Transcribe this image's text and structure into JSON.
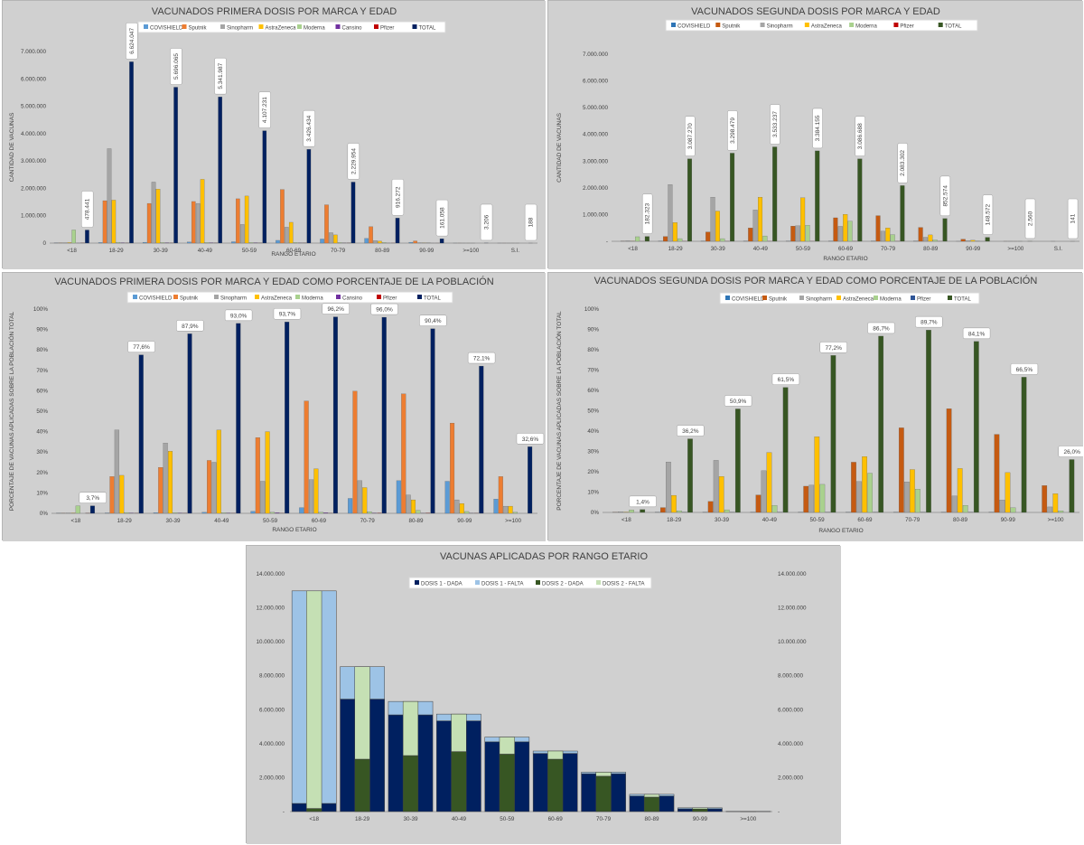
{
  "chart_data": [
    {
      "id": "c1",
      "type": "bar",
      "title": "VACUNADOS PRIMERA DOSIS POR MARCA Y EDAD",
      "xlabel": "RANGO ETARIO",
      "ylabel": "CANTIDAD DE VACUNAS",
      "ylim": [
        0,
        7000000
      ],
      "yticks": [
        "0",
        "1.000.000",
        "2.000.000",
        "3.000.000",
        "4.000.000",
        "5.000.000",
        "6.000.000",
        "7.000.000"
      ],
      "legend_position": "top",
      "grid": false,
      "categories": [
        "<18",
        "18-29",
        "30-39",
        "40-49",
        "50-59",
        "60-69",
        "70-79",
        "80-89",
        "90-99",
        ">=100",
        "S.I."
      ],
      "series": [
        {
          "name": "COVISHIELD",
          "color": "#5b9bd5",
          "values": [
            10000,
            20000,
            30000,
            40000,
            50000,
            100000,
            150000,
            170000,
            30000,
            1000,
            500
          ]
        },
        {
          "name": "Sputnik",
          "color": "#ed7d31",
          "values": [
            10000,
            1550000,
            1450000,
            1520000,
            1620000,
            1960000,
            1400000,
            600000,
            80000,
            1000,
            300
          ]
        },
        {
          "name": "Sinopharm",
          "color": "#a5a5a5",
          "values": [
            10000,
            3450000,
            2230000,
            1450000,
            680000,
            580000,
            380000,
            90000,
            15000,
            200,
            100
          ]
        },
        {
          "name": "AstraZeneca",
          "color": "#ffc000",
          "values": [
            20000,
            1570000,
            1970000,
            2330000,
            1720000,
            760000,
            300000,
            70000,
            10000,
            200,
            100
          ]
        },
        {
          "name": "Moderna",
          "color": "#a9d18e",
          "values": [
            480000,
            30000,
            20000,
            20000,
            20000,
            20000,
            20000,
            20000,
            5000,
            100,
            50
          ]
        },
        {
          "name": "Cansino",
          "color": "#7030a0",
          "values": [
            2000,
            15000,
            15000,
            15000,
            15000,
            10000,
            5000,
            2000,
            500,
            0,
            0
          ]
        },
        {
          "name": "Pfizer",
          "color": "#c00000",
          "values": [
            8000,
            5000,
            5000,
            5000,
            5000,
            5000,
            5000,
            3000,
            1000,
            0,
            0
          ]
        },
        {
          "name": "TOTAL",
          "color": "#002060",
          "values": [
            478441,
            6624047,
            5696065,
            5341987,
            4107231,
            3426434,
            2229954,
            916272,
            161058,
            3206,
            188
          ]
        }
      ],
      "data_labels": [
        "478.441",
        "6.624.047",
        "5.696.065",
        "5.341.987",
        "4.107.231",
        "3.426.434",
        "2.229.954",
        "916.272",
        "161.058",
        "3.206",
        "188"
      ]
    },
    {
      "id": "c2",
      "type": "bar",
      "title": "VACUNADOS SEGUNDA DOSIS POR MARCA Y EDAD",
      "xlabel": "RANGO ETARIO",
      "ylabel": "CANTIDAD DE VACUNAS",
      "ylim": [
        0,
        7000000
      ],
      "yticks": [
        "-",
        "1.000.000",
        "2.000.000",
        "3.000.000",
        "4.000.000",
        "5.000.000",
        "6.000.000",
        "7.000.000"
      ],
      "legend_position": "top",
      "grid": false,
      "categories": [
        "<18",
        "18-29",
        "30-39",
        "40-49",
        "50-59",
        "60-69",
        "70-79",
        "80-89",
        "90-99",
        ">=100",
        "S.I."
      ],
      "series": [
        {
          "name": "COVISHIELD",
          "color": "#2e75b6",
          "values": [
            0,
            5000,
            5000,
            5000,
            5000,
            5000,
            5000,
            5000,
            1000,
            0,
            0
          ]
        },
        {
          "name": "Sputnik",
          "color": "#c55a11",
          "values": [
            5000,
            180000,
            350000,
            500000,
            570000,
            880000,
            960000,
            520000,
            80000,
            1000,
            0
          ]
        },
        {
          "name": "Sinopharm",
          "color": "#a5a5a5",
          "values": [
            20000,
            2120000,
            1650000,
            1170000,
            580000,
            560000,
            380000,
            150000,
            20000,
            500,
            100
          ]
        },
        {
          "name": "AstraZeneca",
          "color": "#ffc000",
          "values": [
            10000,
            700000,
            1130000,
            1650000,
            1630000,
            1010000,
            500000,
            240000,
            40000,
            500,
            0
          ]
        },
        {
          "name": "Moderna",
          "color": "#a9d18e",
          "values": [
            170000,
            100000,
            100000,
            200000,
            600000,
            750000,
            250000,
            50000,
            10000,
            500,
            0
          ]
        },
        {
          "name": "Pfizer",
          "color": "#c00000",
          "values": [
            2000,
            3000,
            3000,
            3000,
            3000,
            3000,
            3000,
            2000,
            500,
            0,
            0
          ]
        },
        {
          "name": "TOTAL",
          "color": "#375623",
          "values": [
            182323,
            3087270,
            3298479,
            3533237,
            3384155,
            3086688,
            2083302,
            852574,
            148572,
            2560,
            141
          ]
        }
      ],
      "data_labels": [
        "182.323",
        "3.087.270",
        "3.298.479",
        "3.533.237",
        "3.384.155",
        "3.086.688",
        "2.083.302",
        "852.574",
        "148.572",
        "2.560",
        "141"
      ]
    },
    {
      "id": "c3",
      "type": "bar",
      "title": "VACUNADOS PRIMERA DOSIS POR MARCA Y EDAD COMO PORCENTAJE DE LA POBLACIÓN",
      "xlabel": "RANGO ETARIO",
      "ylabel": "PORCENTAJE DE VACUNAS APLICADAS SOBRE LA POBLACIÓN TOTAL",
      "ylim": [
        0,
        100
      ],
      "yticks": [
        "0%",
        "10%",
        "20%",
        "30%",
        "40%",
        "50%",
        "60%",
        "70%",
        "80%",
        "90%",
        "100%"
      ],
      "legend_position": "top",
      "grid": false,
      "categories": [
        "<18",
        "18-29",
        "30-39",
        "40-49",
        "50-59",
        "60-69",
        "70-79",
        "80-89",
        "90-99",
        ">=100"
      ],
      "series": [
        {
          "name": "COVISHIELD",
          "color": "#5b9bd5",
          "values": [
            0.1,
            0.2,
            0.3,
            0.5,
            1.0,
            2.8,
            7.3,
            16.0,
            15.7,
            7.0
          ]
        },
        {
          "name": "Sputnik",
          "color": "#ed7d31",
          "values": [
            0.1,
            18.0,
            22.5,
            25.9,
            37.1,
            55.0,
            59.8,
            58.5,
            44.2,
            18.0
          ]
        },
        {
          "name": "Sinopharm",
          "color": "#a5a5a5",
          "values": [
            0.1,
            40.8,
            34.4,
            25.0,
            15.7,
            16.5,
            16.0,
            9.0,
            6.6,
            3.5
          ]
        },
        {
          "name": "AstraZeneca",
          "color": "#ffc000",
          "values": [
            0.2,
            18.6,
            30.4,
            40.8,
            40.0,
            21.8,
            12.6,
            6.6,
            4.8,
            3.5
          ]
        },
        {
          "name": "Moderna",
          "color": "#a9d18e",
          "values": [
            3.7,
            0.4,
            0.3,
            0.3,
            0.5,
            0.5,
            0.8,
            1.5,
            0.9,
            0.5
          ]
        },
        {
          "name": "Cansino",
          "color": "#7030a0",
          "values": [
            0.0,
            0.2,
            0.2,
            0.2,
            0.3,
            0.3,
            0.2,
            0.1,
            0.1,
            0.0
          ]
        },
        {
          "name": "Pfizer",
          "color": "#c00000",
          "values": [
            0.1,
            0.1,
            0.1,
            0.1,
            0.1,
            0.1,
            0.2,
            0.2,
            0.1,
            0.0
          ]
        },
        {
          "name": "TOTAL",
          "color": "#002060",
          "values": [
            3.7,
            77.6,
            87.9,
            93.0,
            93.7,
            96.2,
            96.0,
            90.4,
            72.1,
            32.6
          ]
        }
      ],
      "data_labels": [
        "3,7%",
        "77,6%",
        "87,9%",
        "93,0%",
        "93,7%",
        "96,2%",
        "96,0%",
        "90,4%",
        "72,1%",
        "32,6%"
      ]
    },
    {
      "id": "c4",
      "type": "bar",
      "title": "VACUNADOS SEGUNDA DOSIS POR MARCA Y EDAD COMO PORCENTAJE DE LA POBLACIÓN",
      "xlabel": "RANGO ETARIO",
      "ylabel": "PORCENTAJE DE VACUNAS APLICADAS SOBRE LA POBLACIÓN TOTAL",
      "ylim": [
        0,
        100
      ],
      "yticks": [
        "0%",
        "10%",
        "20%",
        "30%",
        "40%",
        "50%",
        "60%",
        "70%",
        "80%",
        "90%",
        "100%"
      ],
      "legend_position": "top",
      "grid": false,
      "categories": [
        "<18",
        "18-29",
        "30-39",
        "40-49",
        "50-59",
        "60-69",
        "70-79",
        "80-89",
        "90-99",
        ">=100"
      ],
      "series": [
        {
          "name": "COVISHIELD",
          "color": "#2e75b6",
          "values": [
            0.0,
            0.1,
            0.1,
            0.1,
            0.1,
            0.1,
            0.1,
            0.1,
            0.1,
            0.0
          ]
        },
        {
          "name": "Sputnik",
          "color": "#c55a11",
          "values": [
            0.1,
            2.4,
            5.4,
            8.6,
            12.9,
            24.7,
            41.6,
            51.0,
            38.4,
            13.2
          ]
        },
        {
          "name": "Sinopharm",
          "color": "#a5a5a5",
          "values": [
            0.3,
            24.8,
            25.6,
            20.5,
            13.4,
            15.2,
            15.0,
            8.1,
            6.1,
            2.7
          ]
        },
        {
          "name": "AstraZeneca",
          "color": "#ffc000",
          "values": [
            0.2,
            8.4,
            17.7,
            29.5,
            37.2,
            27.5,
            21.1,
            21.6,
            19.6,
            9.2
          ]
        },
        {
          "name": "Moderna",
          "color": "#a9d18e",
          "values": [
            1.2,
            0.8,
            1.3,
            3.4,
            13.8,
            19.3,
            11.4,
            3.5,
            2.3,
            0.8
          ]
        },
        {
          "name": "Pfizer",
          "color": "#2f5597",
          "values": [
            0.0,
            0.1,
            0.1,
            0.1,
            0.1,
            0.1,
            0.1,
            0.1,
            0.0,
            0.0
          ]
        },
        {
          "name": "TOTAL",
          "color": "#375623",
          "values": [
            1.4,
            36.2,
            50.9,
            61.5,
            77.2,
            86.7,
            89.7,
            84.1,
            66.5,
            26.0
          ]
        }
      ],
      "data_labels": [
        "1,4%",
        "36,2%",
        "50,9%",
        "61,5%",
        "77,2%",
        "86,7%",
        "89,7%",
        "84,1%",
        "66,5%",
        "26,0%"
      ]
    },
    {
      "id": "c5",
      "type": "bar",
      "title": "VACUNAS APLICADAS POR RANGO ETARIO",
      "ylim": [
        0,
        14000000
      ],
      "yticks": [
        "-",
        "2.000.000",
        "4.000.000",
        "6.000.000",
        "8.000.000",
        "10.000.000",
        "12.000.000",
        "14.000.000"
      ],
      "legend_position": "top",
      "grid": false,
      "categories": [
        "<18",
        "18-29",
        "30-39",
        "40-49",
        "50-59",
        "60-69",
        "70-79",
        "80-89",
        "90-99",
        ">=100"
      ],
      "series": [
        {
          "name": "DOSIS 1 - DADA",
          "color": "#002060",
          "values": [
            478441,
            6624047,
            5696065,
            5341987,
            4107231,
            3426434,
            2229954,
            916272,
            161058,
            3206
          ]
        },
        {
          "name": "DOSIS 1 - FALTA",
          "color": "#9dc3e6",
          "values": [
            12520000,
            1910000,
            790000,
            400000,
            280000,
            140000,
            90000,
            100000,
            60000,
            7000
          ]
        },
        {
          "name": "DOSIS 2 - DADA",
          "color": "#375623",
          "values": [
            182323,
            3087270,
            3298479,
            3533237,
            3384155,
            3086688,
            2083302,
            852574,
            148572,
            2560
          ]
        },
        {
          "name": "DOSIS 2 - FALTA",
          "color": "#c5e0b4",
          "values": [
            12816118,
            5446777,
            3187586,
            2208750,
            1003076,
            479746,
            236652,
            163698,
            72486,
            7646
          ]
        }
      ]
    }
  ]
}
